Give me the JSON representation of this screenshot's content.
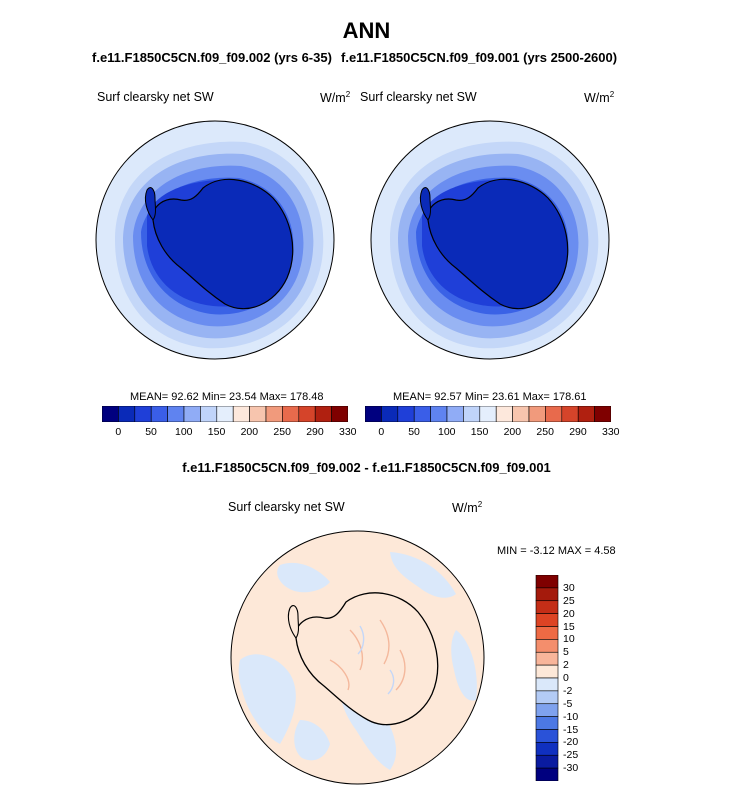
{
  "header": {
    "title": "ANN",
    "left_subtitle": "f.e11.F1850C5CN.f09_f09.002 (yrs 6-35)",
    "right_subtitle": "f.e11.F1850C5CN.f09_f09.001 (yrs 2500-2600)"
  },
  "chart_data": [
    {
      "type": "heatmap",
      "projection": "south-polar-stereographic",
      "title": "Surf clearsky net SW",
      "units": "W/m2",
      "stats": {
        "mean": "92.62",
        "min": "23.54",
        "max": "178.48"
      },
      "stats_text": "MEAN=  92.62  Min=  23.54  Max=  178.48",
      "colorbar": {
        "orientation": "horizontal",
        "tick_labels": [
          "0",
          "50",
          "100",
          "150",
          "200",
          "250",
          "290",
          "330"
        ],
        "colors": [
          "#00007f",
          "#0a2ab8",
          "#1f3fd8",
          "#3a5ee8",
          "#5f83f0",
          "#90acf6",
          "#c0d4fa",
          "#e4eefc",
          "#fde8dc",
          "#f7c5ae",
          "#f19a7c",
          "#e86a4c",
          "#d5442a",
          "#b02010",
          "#7f0000"
        ]
      }
    },
    {
      "type": "heatmap",
      "projection": "south-polar-stereographic",
      "title": "Surf clearsky net SW",
      "units": "W/m2",
      "stats": {
        "mean": "92.57",
        "min": "23.61",
        "max": "178.61"
      },
      "stats_text": "MEAN=  92.57  Min=  23.61  Max=  178.61",
      "colorbar": {
        "orientation": "horizontal",
        "tick_labels": [
          "0",
          "50",
          "100",
          "150",
          "200",
          "250",
          "290",
          "330"
        ],
        "colors": [
          "#00007f",
          "#0a2ab8",
          "#1f3fd8",
          "#3a5ee8",
          "#5f83f0",
          "#90acf6",
          "#c0d4fa",
          "#e4eefc",
          "#fde8dc",
          "#f7c5ae",
          "#f19a7c",
          "#e86a4c",
          "#d5442a",
          "#b02010",
          "#7f0000"
        ]
      }
    },
    {
      "type": "heatmap",
      "projection": "south-polar-stereographic",
      "title": "f.e11.F1850C5CN.f09_f09.002 - f.e11.F1850C5CN.f09_f09.001",
      "subtitle": "Surf clearsky net SW",
      "units": "W/m2",
      "stats": {
        "min": "-3.12",
        "max": "4.58"
      },
      "stats_text": "MIN = -3.12 MAX =  4.58",
      "colorbar": {
        "orientation": "vertical",
        "tick_labels": [
          "30",
          "25",
          "20",
          "15",
          "10",
          "5",
          "2",
          "0",
          "-2",
          "-5",
          "-10",
          "-15",
          "-20",
          "-25",
          "-30"
        ],
        "colors": [
          "#7f0000",
          "#a41a0c",
          "#c42e17",
          "#dd4424",
          "#ee6a44",
          "#f48e6c",
          "#f8b59a",
          "#fde8d8",
          "#dae8fa",
          "#b3cbf5",
          "#7fa2ee",
          "#4c78e4",
          "#2a52d8",
          "#1030c0",
          "#0a1ba0",
          "#00007f"
        ]
      }
    }
  ],
  "colors": {
    "deep_blue": "#0a2ab8",
    "light_blue": "#dce9fb",
    "peach": "#fde8d8",
    "coast": "#000000"
  }
}
